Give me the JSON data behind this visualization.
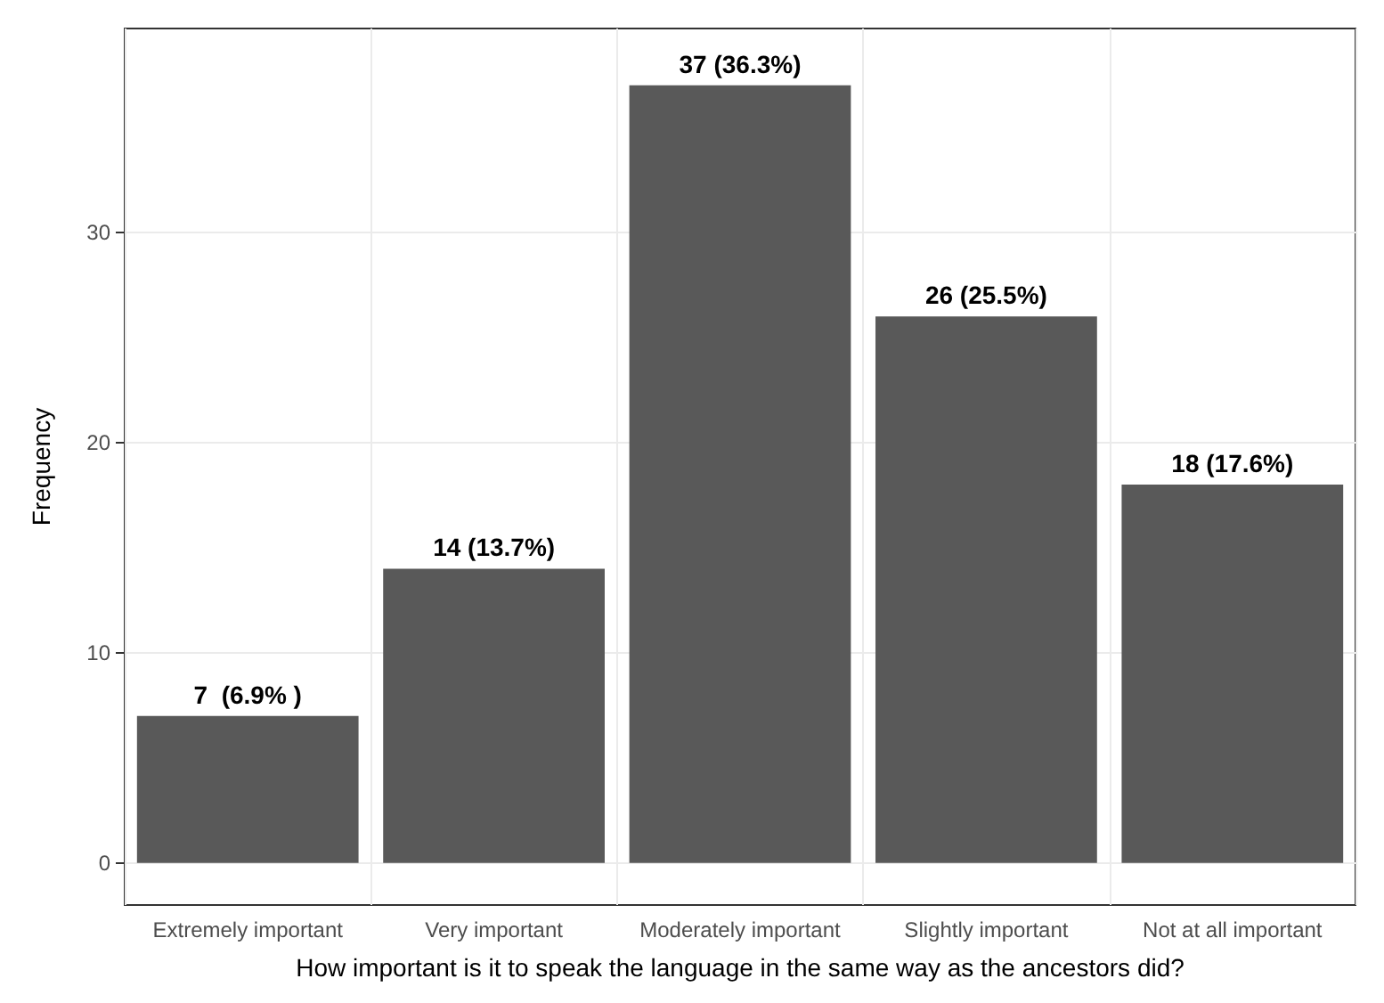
{
  "chart_data": {
    "type": "bar",
    "xlabel": "How important is it to speak the language in the same way as the ancestors did?",
    "ylabel": "Frequency",
    "categories": [
      "Extremely important",
      "Very important",
      "Moderately important",
      "Slightly important",
      "Not at all important"
    ],
    "values": [
      7,
      14,
      37,
      26,
      18
    ],
    "color": "#595959",
    "value_labels": [
      "7  (6.9% )",
      "14 (13.7%)",
      "37 (36.3%)",
      "26 (25.5%)",
      "18 (17.6%)"
    ],
    "ylim": [
      -2,
      39.7
    ],
    "yticks": [
      0,
      10,
      20,
      30
    ],
    "grid": true
  }
}
